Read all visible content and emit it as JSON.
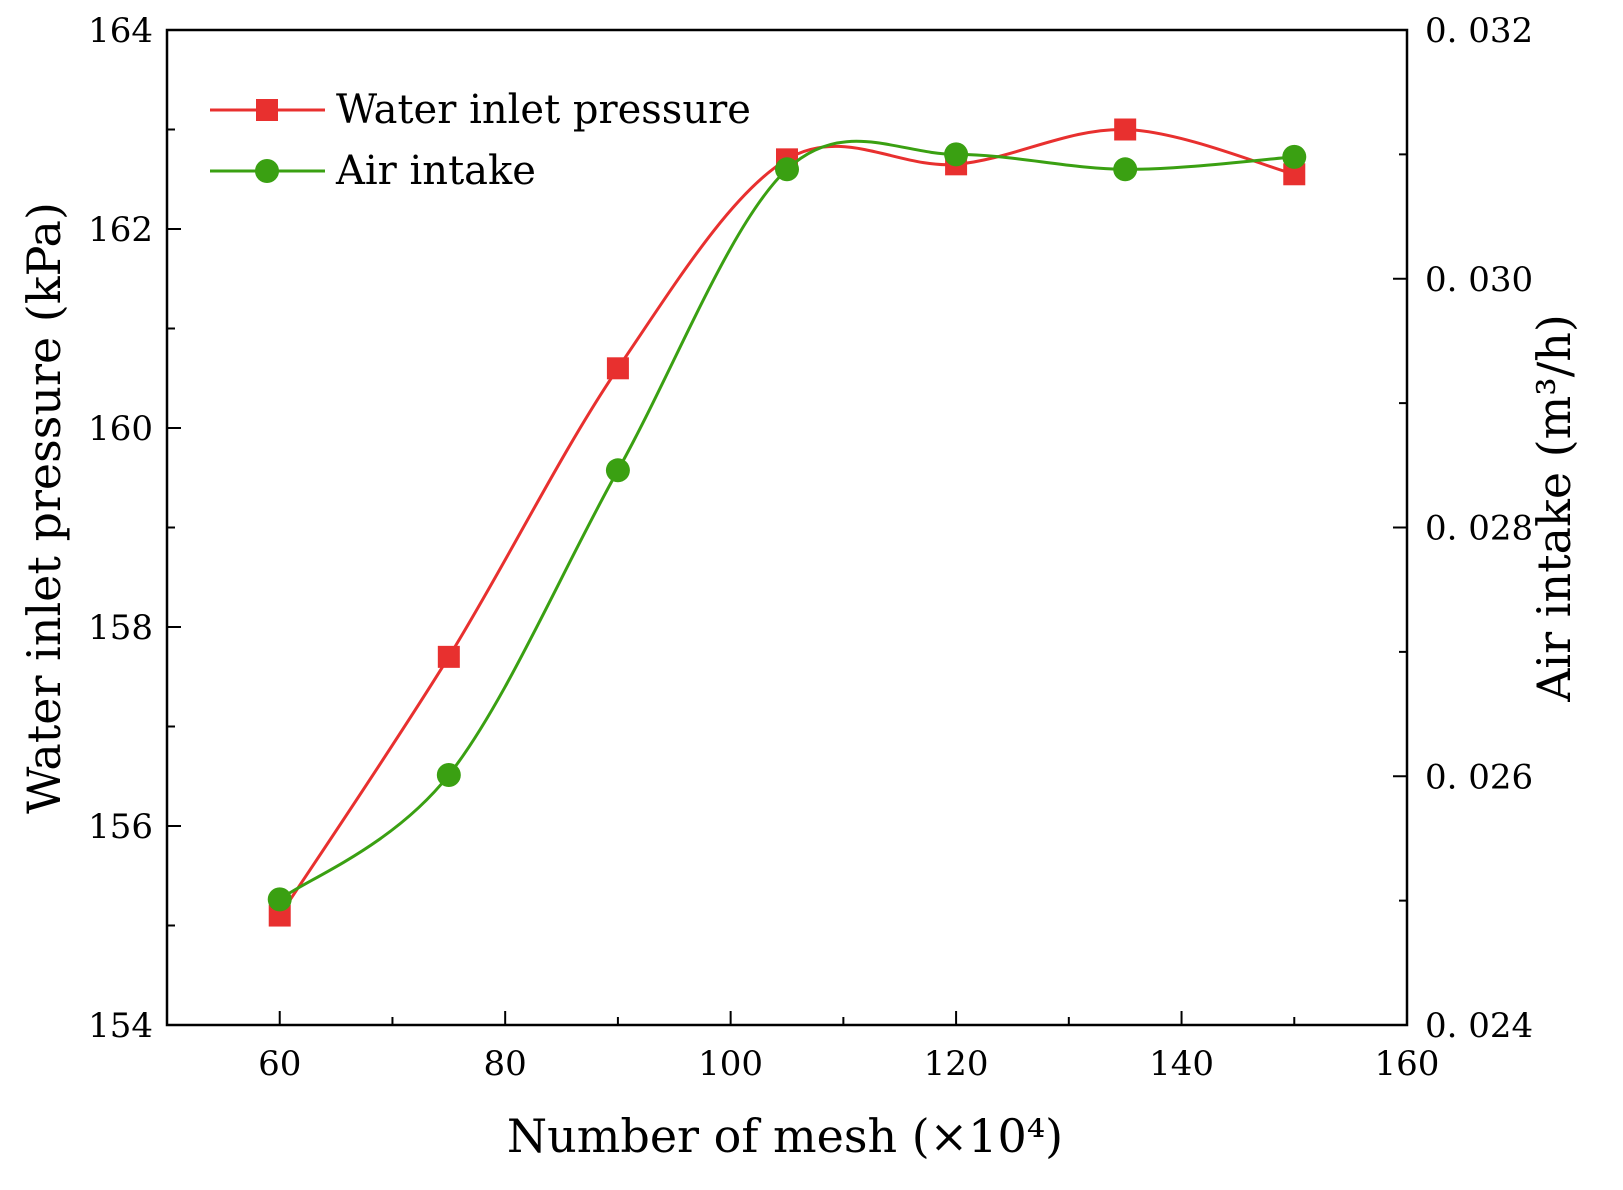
{
  "chart_data": {
    "type": "line",
    "xlabel": "Number of mesh (×10⁴)",
    "ylabel_left": "Water inlet pressure (kPa)",
    "ylabel_right": "Air intake (m³/h)",
    "xlim": [
      50,
      160
    ],
    "ylim_left": [
      154,
      164
    ],
    "ylim_right": [
      0.024,
      0.032
    ],
    "x_ticks": [
      "60",
      "80",
      "100",
      "120",
      "140",
      "160"
    ],
    "y_left_ticks": [
      "154",
      "156",
      "158",
      "160",
      "162",
      "164"
    ],
    "y_right_ticks": [
      "0. 024",
      "0. 026",
      "0. 028",
      "0. 030",
      "0. 032"
    ],
    "legend_position": "top-left",
    "grid": false,
    "series": [
      {
        "name": "Water inlet pressure",
        "axis": "left",
        "marker": "square",
        "color": "#e8302f",
        "x": [
          60,
          75,
          90,
          105,
          120,
          135,
          150
        ],
        "values": [
          155.1,
          157.7,
          160.6,
          162.7,
          162.65,
          163.0,
          162.55
        ]
      },
      {
        "name": "Air intake",
        "axis": "right",
        "marker": "circle",
        "color": "#3aa012",
        "x": [
          60,
          75,
          90,
          105,
          120,
          135,
          150
        ],
        "values": [
          0.02501,
          0.02601,
          0.02846,
          0.03088,
          0.031,
          0.03088,
          0.03098
        ]
      }
    ]
  }
}
